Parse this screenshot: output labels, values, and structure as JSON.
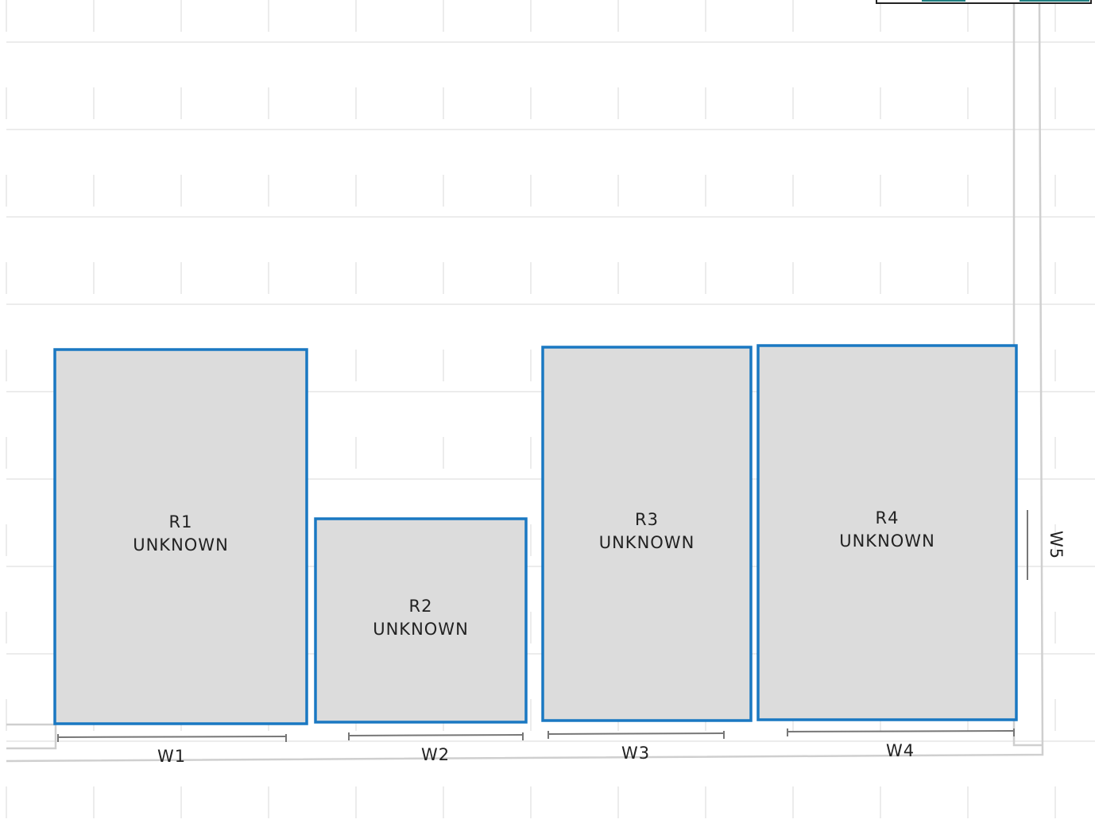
{
  "rooms": [
    {
      "label": "R1",
      "type": "UNKNOWN"
    },
    {
      "label": "R2",
      "type": "UNKNOWN"
    },
    {
      "label": "R3",
      "type": "UNKNOWN"
    },
    {
      "label": "R4",
      "type": "UNKNOWN"
    }
  ],
  "walls": [
    "W1",
    "W2",
    "W3",
    "W4",
    "W5"
  ]
}
